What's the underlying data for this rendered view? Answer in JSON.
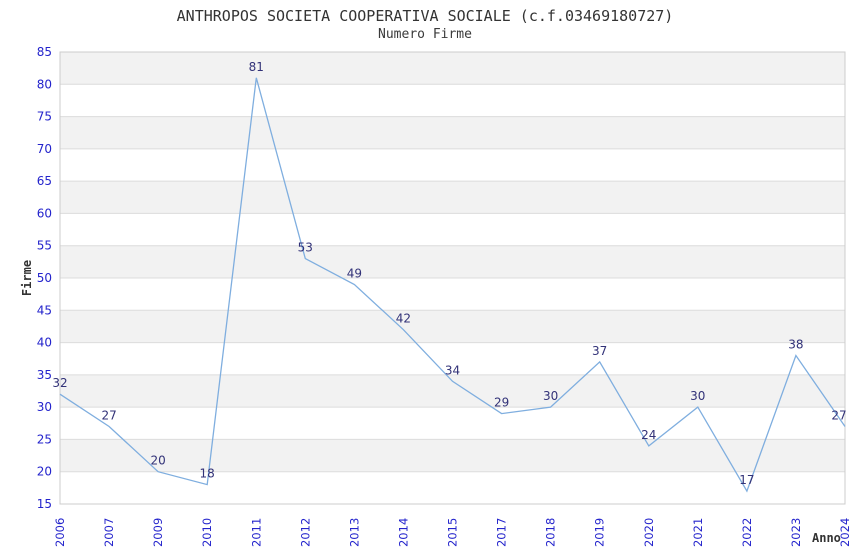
{
  "chart_data": {
    "type": "line",
    "title": "ANTHROPOS SOCIETA COOPERATIVA SOCIALE (c.f.03469180727)",
    "subtitle": "Numero Firme",
    "xlabel": "Anno",
    "ylabel": "Firme",
    "categories": [
      "2006",
      "2007",
      "2009",
      "2010",
      "2011",
      "2012",
      "2013",
      "2014",
      "2015",
      "2017",
      "2018",
      "2019",
      "2020",
      "2021",
      "2022",
      "2023",
      "2024"
    ],
    "values": [
      32,
      27,
      20,
      18,
      81,
      53,
      49,
      42,
      34,
      29,
      30,
      37,
      24,
      30,
      17,
      38,
      27
    ],
    "series_name": "Numero Firme",
    "ylim": [
      15,
      85
    ],
    "ytick_step": 5,
    "yticks": [
      15,
      20,
      25,
      30,
      35,
      40,
      45,
      50,
      55,
      60,
      65,
      70,
      75,
      80,
      85
    ],
    "grid": true,
    "banded_background": true,
    "legend": "none",
    "colors": {
      "line": "#7FAEDF",
      "tick_label": "#2424CC",
      "data_label": "#323278",
      "title": "#333333",
      "band": "#F2F2F2",
      "band_alt": "#FFFFFF",
      "gridline": "#DCDCDC",
      "border": "#CCCCCC",
      "axis_title": "#333333",
      "background": "#FFFFFF"
    }
  }
}
